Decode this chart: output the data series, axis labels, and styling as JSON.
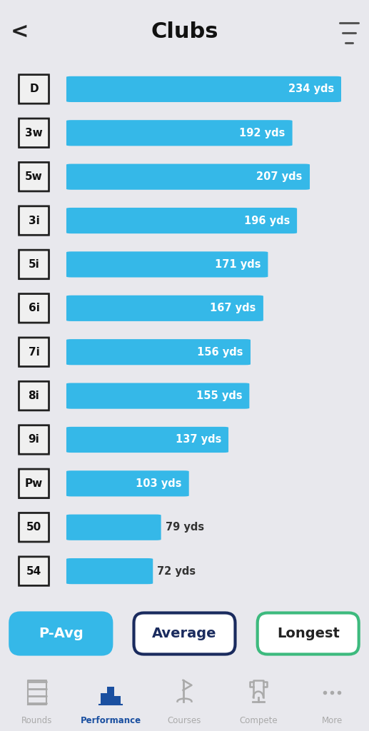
{
  "title": "Clubs",
  "background_color": "#e8e8ed",
  "bar_color": "#35b8e8",
  "clubs": [
    "D",
    "3w",
    "5w",
    "3i",
    "5i",
    "6i",
    "7i",
    "8i",
    "9i",
    "Pw",
    "50",
    "54"
  ],
  "values": [
    234,
    192,
    207,
    196,
    171,
    167,
    156,
    155,
    137,
    103,
    79,
    72
  ],
  "max_value": 250,
  "label_inside": [
    true,
    true,
    true,
    true,
    true,
    true,
    true,
    true,
    true,
    true,
    false,
    false
  ],
  "bottom_buttons": [
    {
      "label": "P-Avg",
      "fill": "#35b8e8",
      "text_color": "#ffffff",
      "border_color": "#35b8e8"
    },
    {
      "label": "Average",
      "fill": "#ffffff",
      "text_color": "#1a2b5e",
      "border_color": "#1a2b5e"
    },
    {
      "label": "Longest",
      "fill": "#ffffff",
      "text_color": "#222222",
      "border_color": "#3dba7e"
    }
  ],
  "nav_items": [
    "Rounds",
    "Performance",
    "Courses",
    "Compete",
    "More"
  ],
  "nav_active": "Performance",
  "nav_active_color": "#1a4fa0",
  "nav_inactive_color": "#aaaaaa",
  "box_border_color": "#222222",
  "box_bg_color": "#f0f0f0",
  "white_panel_color": "#ffffff",
  "header_bg": "#e8e8ed"
}
